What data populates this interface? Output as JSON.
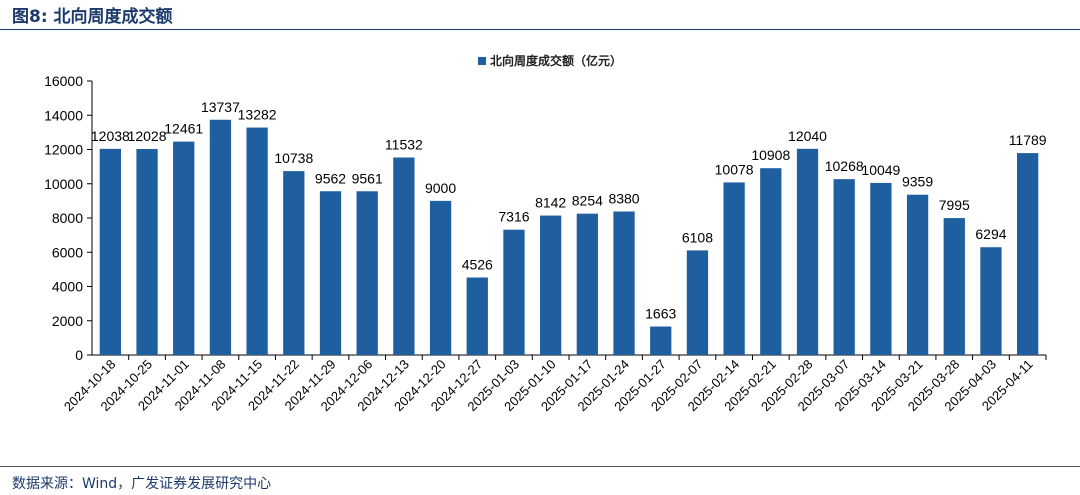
{
  "figure": {
    "title": "图8:  北向周度成交额",
    "source": "数据来源：Wind，广发证券发展研究中心"
  },
  "chart_data": {
    "type": "bar",
    "title": "",
    "legend": {
      "label": "北向周度成交额（亿元）",
      "position": "top-center"
    },
    "xlabel": "",
    "ylabel": "",
    "ylim": [
      0,
      16000
    ],
    "yticks": [
      0,
      2000,
      4000,
      6000,
      8000,
      10000,
      12000,
      14000,
      16000
    ],
    "grid": false,
    "bar_color": "#1f5fa0",
    "categories": [
      "2024-10-18",
      "2024-10-25",
      "2024-11-01",
      "2024-11-08",
      "2024-11-15",
      "2024-11-22",
      "2024-11-29",
      "2024-12-06",
      "2024-12-13",
      "2024-12-20",
      "2024-12-27",
      "2025-01-03",
      "2025-01-10",
      "2025-01-17",
      "2025-01-24",
      "2025-01-27",
      "2025-02-07",
      "2025-02-14",
      "2025-02-21",
      "2025-02-28",
      "2025-03-07",
      "2025-03-14",
      "2025-03-21",
      "2025-03-28",
      "2025-04-03",
      "2025-04-11"
    ],
    "values": [
      12038,
      12028,
      12461,
      13737,
      13282,
      10738,
      9562,
      9561,
      11532,
      9000,
      4526,
      7316,
      8142,
      8254,
      8380,
      1663,
      6108,
      10078,
      10908,
      12040,
      10268,
      10049,
      9359,
      7995,
      6294,
      11789
    ]
  }
}
